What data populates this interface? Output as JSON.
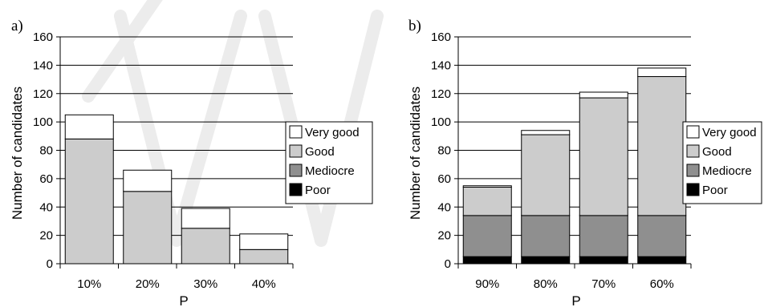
{
  "colors": {
    "very_good": "#ffffff",
    "good": "#cccccc",
    "mediocre": "#8f8f8f",
    "poor": "#000000",
    "grid": "#000000"
  },
  "chart_data": [
    {
      "type": "bar",
      "stacked": true,
      "panel_label": "a)",
      "xlabel": "P",
      "ylabel": "Number of candidates",
      "ylim": [
        0,
        160
      ],
      "yticks": [
        0,
        20,
        40,
        60,
        80,
        100,
        120,
        140,
        160
      ],
      "grid": true,
      "legend_position": "right",
      "categories": [
        "10%",
        "20%",
        "30%",
        "40%"
      ],
      "series": [
        {
          "name": "Poor",
          "color_key": "poor",
          "values": [
            0,
            0,
            0,
            0
          ]
        },
        {
          "name": "Mediocre",
          "color_key": "mediocre",
          "values": [
            0,
            0,
            0,
            0
          ]
        },
        {
          "name": "Good",
          "color_key": "good",
          "values": [
            88,
            51,
            25,
            10
          ]
        },
        {
          "name": "Very good",
          "color_key": "very_good",
          "values": [
            17,
            15,
            14,
            11
          ]
        }
      ],
      "legend": [
        "Very good",
        "Good",
        "Mediocre",
        "Poor"
      ]
    },
    {
      "type": "bar",
      "stacked": true,
      "panel_label": "b)",
      "xlabel": "P",
      "ylabel": "Number of candidates",
      "ylim": [
        0,
        160
      ],
      "yticks": [
        0,
        20,
        40,
        60,
        80,
        100,
        120,
        140,
        160
      ],
      "grid": true,
      "legend_position": "right",
      "categories": [
        "90%",
        "80%",
        "70%",
        "60%"
      ],
      "series": [
        {
          "name": "Poor",
          "color_key": "poor",
          "values": [
            5,
            5,
            5,
            5
          ]
        },
        {
          "name": "Mediocre",
          "color_key": "mediocre",
          "values": [
            29,
            29,
            29,
            29
          ]
        },
        {
          "name": "Good",
          "color_key": "good",
          "values": [
            20,
            57,
            83,
            98
          ]
        },
        {
          "name": "Very good",
          "color_key": "very_good",
          "values": [
            1,
            3,
            4,
            6
          ]
        }
      ],
      "legend": [
        "Very good",
        "Good",
        "Mediocre",
        "Poor"
      ]
    }
  ]
}
